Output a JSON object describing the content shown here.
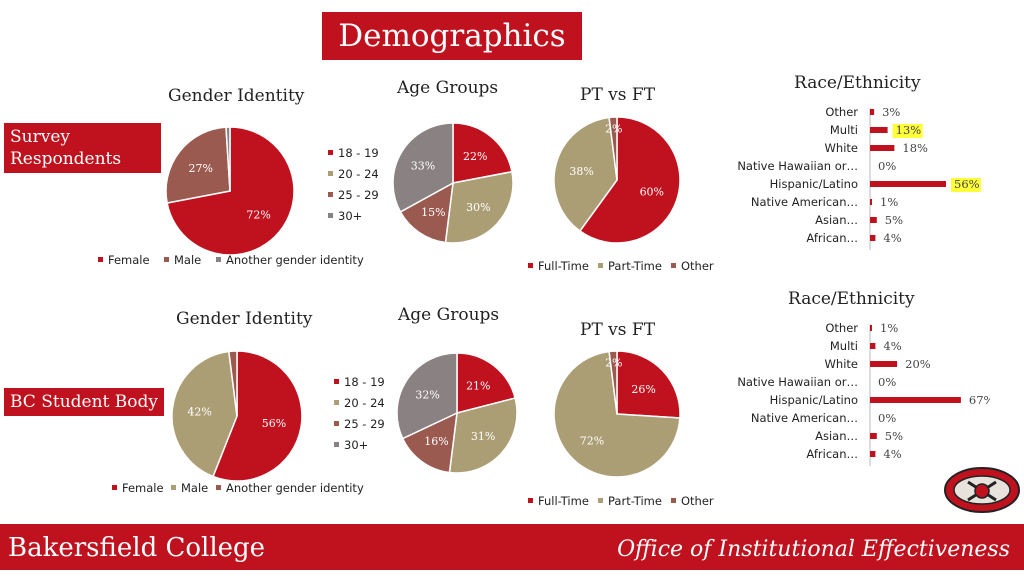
{
  "page_title": "Demographics",
  "sections": {
    "survey": "Survey\nRespondents",
    "bc": "BC Student Body"
  },
  "footer": {
    "left": "Bakersfield College",
    "right": "Office of Institutional Effectiveness"
  },
  "colors": {
    "red": "#c0121e",
    "tan": "#ac9e74",
    "brown": "#9b5a50",
    "gray": "#8a8282",
    "bar": "#c0121e",
    "highlight": "#ffff3a"
  },
  "chart_data": [
    {
      "id": "gender_survey",
      "type": "pie",
      "title": "Gender Identity",
      "categories": [
        "Female",
        "Male",
        "Another gender identity"
      ],
      "values": [
        72,
        27,
        1
      ],
      "labels": [
        "72%",
        "27%",
        ""
      ],
      "colors": [
        "#c0121e",
        "#9b5a50",
        "#8a8282"
      ],
      "legend": "bottom"
    },
    {
      "id": "age_survey",
      "type": "pie",
      "title": "Age Groups",
      "categories": [
        "18 - 19",
        "20 - 24",
        "25 - 29",
        "30+"
      ],
      "values": [
        22,
        30,
        15,
        33
      ],
      "labels": [
        "22%",
        "30%",
        "15%",
        "33%"
      ],
      "colors": [
        "#c0121e",
        "#ac9e74",
        "#9b5a50",
        "#8a8282"
      ],
      "legend": "left"
    },
    {
      "id": "ptft_survey",
      "type": "pie",
      "title": "PT vs FT",
      "categories": [
        "Full-Time",
        "Part-Time",
        "Other"
      ],
      "values": [
        60,
        38,
        2
      ],
      "labels": [
        "60%",
        "38%",
        "2%"
      ],
      "colors": [
        "#c0121e",
        "#ac9e74",
        "#9b5a50"
      ],
      "legend": "bottom"
    },
    {
      "id": "race_survey",
      "type": "bar",
      "title": "Race/Ethnicity",
      "categories": [
        "Other",
        "Multi",
        "White",
        "Native Hawaiian or…",
        "Hispanic/Latino",
        "Native American…",
        "Asian…",
        "African…"
      ],
      "values": [
        3,
        13,
        18,
        0,
        56,
        1,
        5,
        4
      ],
      "labels": [
        "3%",
        "13%",
        "18%",
        "0%",
        "56%",
        "1%",
        "5%",
        "4%"
      ],
      "highlight": [
        false,
        true,
        false,
        false,
        true,
        false,
        false,
        false
      ],
      "xlim": [
        0,
        70
      ]
    },
    {
      "id": "gender_bc",
      "type": "pie",
      "title": "Gender Identity",
      "categories": [
        "Female",
        "Male",
        "Another gender identity"
      ],
      "values": [
        56,
        42,
        2
      ],
      "labels": [
        "56%",
        "42%",
        ""
      ],
      "colors": [
        "#c0121e",
        "#ac9e74",
        "#9b5a50"
      ],
      "legend": "bottom"
    },
    {
      "id": "age_bc",
      "type": "pie",
      "title": "Age Groups",
      "categories": [
        "18 - 19",
        "20 - 24",
        "25 - 29",
        "30+"
      ],
      "values": [
        21,
        31,
        16,
        32
      ],
      "labels": [
        "21%",
        "31%",
        "16%",
        "32%"
      ],
      "colors": [
        "#c0121e",
        "#ac9e74",
        "#9b5a50",
        "#8a8282"
      ],
      "legend": "left"
    },
    {
      "id": "ptft_bc",
      "type": "pie",
      "title": "PT vs FT",
      "categories": [
        "Full-Time",
        "Part-Time",
        "Other"
      ],
      "values": [
        26,
        72,
        2
      ],
      "labels": [
        "26%",
        "72%",
        "2%"
      ],
      "colors": [
        "#c0121e",
        "#ac9e74",
        "#9b5a50"
      ],
      "legend": "bottom"
    },
    {
      "id": "race_bc",
      "type": "bar",
      "title": "Race/Ethnicity",
      "categories": [
        "Other",
        "Multi",
        "White",
        "Native Hawaiian or…",
        "Hispanic/Latino",
        "Native American…",
        "Asian…",
        "African…"
      ],
      "values": [
        1,
        4,
        20,
        0,
        67,
        0,
        5,
        4
      ],
      "labels": [
        "1%",
        "4%",
        "20%",
        "0%",
        "67%",
        "0%",
        "5%",
        "4%"
      ],
      "highlight": [
        false,
        false,
        false,
        false,
        false,
        false,
        false,
        false
      ],
      "xlim": [
        0,
        70
      ]
    }
  ]
}
